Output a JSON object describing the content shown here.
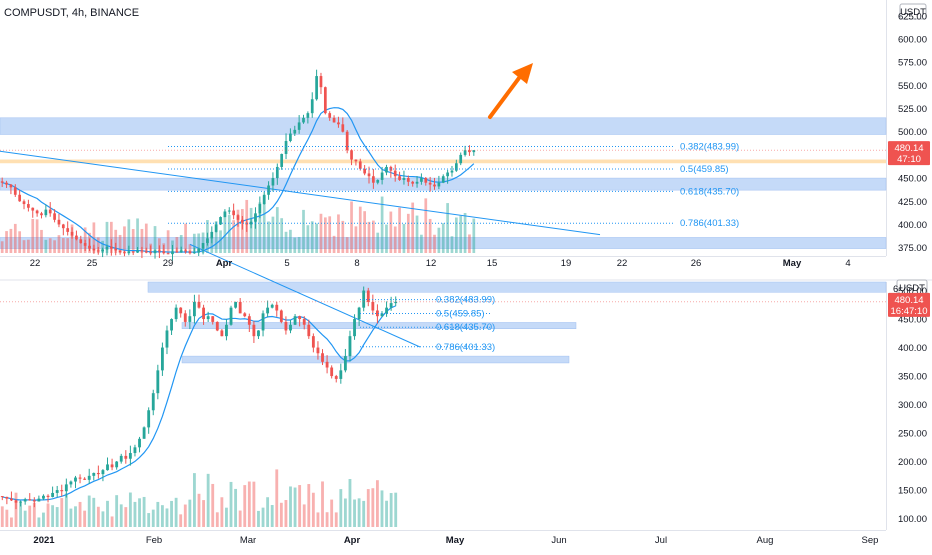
{
  "title": "COMPUSDT, 4h, BINANCE",
  "currency_badge": "USDT",
  "colors": {
    "up": "#26a69a",
    "down": "#ef5350",
    "ma": "#2196f3",
    "zone": "#bbd3f7",
    "fib": "#2196f3",
    "orange_zone": "#ffe0b2",
    "arrow": "#ff6d00",
    "axis_text": "#787b86"
  },
  "chart_data": [
    {
      "type": "candlestick",
      "timeframe": "4h",
      "x_ticks": [
        "22",
        "25",
        "29",
        "Apr",
        "5",
        "8",
        "12",
        "15",
        "19",
        "22",
        "26",
        "May",
        "4"
      ],
      "y_ticks": [
        375,
        400,
        425,
        450,
        475,
        500,
        525,
        550,
        575,
        600,
        625
      ],
      "y_tick_labels": [
        "375.00",
        "400.00",
        "425.00",
        "450.00",
        "475.00",
        "500.00",
        "525.00",
        "550.00",
        "575.00",
        "600.00",
        "625.00"
      ],
      "ylim": [
        366,
        642
      ],
      "last_price": "480.14",
      "countdown": "47:10",
      "fib_levels": [
        {
          "label": "0.382(483.99)",
          "value": 483.99
        },
        {
          "label": "0.5(459.85)",
          "value": 459.85
        },
        {
          "label": "0.618(435.70)",
          "value": 435.7
        },
        {
          "label": "0.786(401.33)",
          "value": 401.33
        }
      ],
      "zones": [
        [
          497,
          515
        ],
        [
          437,
          450
        ],
        [
          374,
          386
        ]
      ],
      "orange_zone": [
        466,
        470
      ],
      "trendline": [
        [
          0,
          479
        ],
        [
          600,
          389
        ]
      ],
      "arrow": "up-right",
      "closes": [
        445,
        443,
        440,
        432,
        425,
        422,
        418,
        415,
        412,
        410,
        416,
        412,
        405,
        400,
        396,
        392,
        388,
        384,
        380,
        377,
        374,
        372,
        371,
        373,
        376,
        374,
        372,
        370,
        369,
        371,
        370,
        372,
        371,
        370,
        369,
        372,
        371,
        369,
        368,
        371,
        370,
        372,
        371,
        369,
        370,
        374,
        380,
        385,
        392,
        400,
        408,
        414,
        415,
        410,
        405,
        402,
        400,
        403,
        412,
        422,
        432,
        442,
        450,
        462,
        476,
        490,
        498,
        502,
        510,
        515,
        520,
        535,
        560,
        548,
        520,
        515,
        510,
        508,
        500,
        480,
        470,
        468,
        460,
        455,
        452,
        445,
        448,
        456,
        462,
        458,
        452,
        448,
        450,
        446,
        444,
        446,
        450,
        445,
        443,
        441,
        445,
        452,
        456,
        458,
        466,
        475,
        480,
        478,
        480.14
      ]
    },
    {
      "type": "candlestick",
      "x_ticks": [
        "2021",
        "Feb",
        "Mar",
        "Apr",
        "May",
        "Jun",
        "Jul",
        "Aug",
        "Sep"
      ],
      "y_ticks": [
        100,
        150,
        200,
        250,
        300,
        350,
        400,
        450,
        500
      ],
      "y_tick_labels": [
        "100.00",
        "150.00",
        "200.00",
        "250.00",
        "300.00",
        "350.00",
        "400.00",
        "450.00",
        "500.00"
      ],
      "ylim": [
        80,
        515
      ],
      "last_price": "480.14",
      "countdown": "16:47:10",
      "fib_levels": [
        {
          "label": "0.382(483.99)",
          "value": 483.99
        },
        {
          "label": "0.5(459.85)",
          "value": 459.85
        },
        {
          "label": "0.618(435.70)",
          "value": 435.7
        },
        {
          "label": "0.786(401.33)",
          "value": 401.33
        }
      ],
      "zones": [
        [
          497,
          515
        ],
        [
          433,
          444
        ],
        [
          373,
          385
        ]
      ],
      "trendline": [
        [
          190,
          581
        ],
        [
          420,
          401
        ]
      ],
      "closes": [
        138,
        135,
        132,
        128,
        130,
        134,
        132,
        130,
        135,
        140,
        138,
        145,
        150,
        148,
        160,
        165,
        172,
        170,
        168,
        175,
        180,
        178,
        185,
        195,
        190,
        200,
        210,
        205,
        215,
        225,
        240,
        260,
        290,
        320,
        360,
        400,
        430,
        450,
        470,
        460,
        445,
        455,
        480,
        470,
        450,
        455,
        445,
        430,
        420,
        440,
        470,
        480,
        460,
        455,
        440,
        420,
        430,
        460,
        470,
        475,
        465,
        445,
        430,
        440,
        455,
        450,
        440,
        420,
        400,
        390,
        375,
        365,
        350,
        345,
        360,
        385,
        420,
        450,
        470,
        500,
        480,
        465,
        455,
        460,
        470,
        478,
        480.14
      ]
    }
  ]
}
